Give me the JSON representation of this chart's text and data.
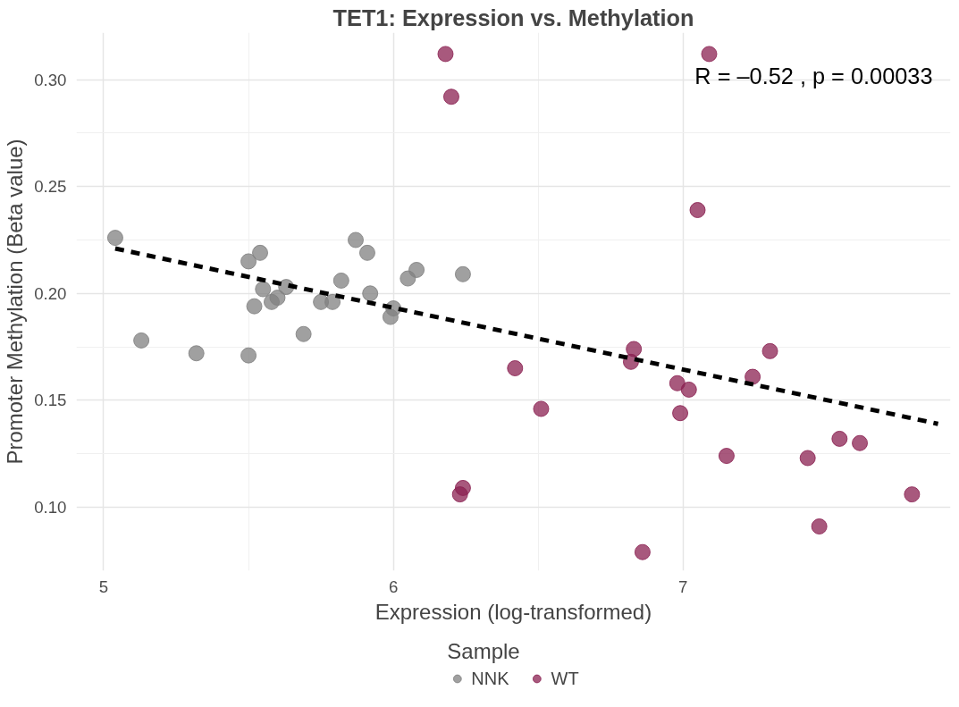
{
  "chart_data": {
    "type": "scatter",
    "title": "TET1: Expression vs. Methylation",
    "xlabel": "Expression (log-transformed)",
    "ylabel": "Promoter Methylation (Beta value)",
    "legend_title": "Sample",
    "annotations": [
      "R = –0.52 , p = 0.00033"
    ],
    "xlim": [
      4.906,
      7.923
    ],
    "ylim": [
      0.0703,
      0.322
    ],
    "xticks": [
      5,
      6,
      7
    ],
    "yticks": [
      {
        "value": 0.1,
        "label": "0.10"
      },
      0.15,
      {
        "value": 0.2,
        "label": "0.20"
      },
      0.25,
      {
        "value": 0.3,
        "label": "0.30"
      }
    ],
    "grid": true,
    "legend": "bottom",
    "series": [
      {
        "name": "NNK",
        "color": "#808080",
        "marker": "circle",
        "x": [
          5.04,
          5.13,
          5.32,
          5.5,
          5.5,
          5.54,
          5.52,
          5.55,
          5.58,
          5.6,
          5.63,
          5.69,
          5.75,
          5.79,
          5.82,
          5.87,
          5.91,
          5.92,
          5.99,
          6.0,
          6.05,
          6.08,
          6.24
        ],
        "values": [
          0.226,
          0.178,
          0.172,
          0.171,
          0.215,
          0.219,
          0.194,
          0.202,
          0.196,
          0.198,
          0.203,
          0.181,
          0.196,
          0.196,
          0.206,
          0.225,
          0.219,
          0.2,
          0.189,
          0.193,
          0.207,
          0.211,
          0.209
        ]
      },
      {
        "name": "WT",
        "color": "#8b2252",
        "marker": "circle",
        "x": [
          6.18,
          6.2,
          6.23,
          6.24,
          6.42,
          6.51,
          6.82,
          6.83,
          6.86,
          6.98,
          6.99,
          7.02,
          7.05,
          7.09,
          7.15,
          7.24,
          7.3,
          7.43,
          7.47,
          7.54,
          7.61,
          7.79
        ],
        "values": [
          0.312,
          0.292,
          0.106,
          0.109,
          0.165,
          0.146,
          0.168,
          0.174,
          0.079,
          0.158,
          0.144,
          0.155,
          0.239,
          0.312,
          0.124,
          0.161,
          0.173,
          0.123,
          0.091,
          0.132,
          0.13,
          0.106
        ]
      },
      {
        "type": "line",
        "color": "#000000",
        "line_style": "dashed",
        "x": [
          5.04,
          7.88
        ],
        "values": [
          0.221,
          0.139
        ]
      }
    ]
  }
}
